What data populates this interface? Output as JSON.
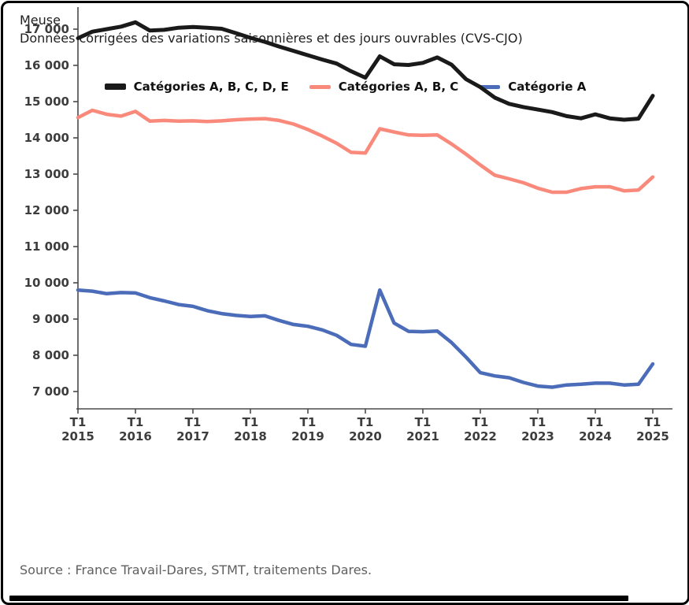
{
  "header": {
    "title": "Meuse",
    "subtitle": "Données corrigées des variations saisonnières et des jours ouvrables (CVS-CJO)"
  },
  "legend": [
    {
      "label": "Catégories A, B, C, D, E",
      "color": "#1a1a1a"
    },
    {
      "label": "Catégories A, B, C",
      "color": "#f9897b"
    },
    {
      "label": "Catégorie A",
      "color": "#4b6cb8"
    }
  ],
  "source": "Source : France Travail-Dares, STMT, traitements Dares.",
  "chart_data": {
    "type": "line",
    "title": "Meuse",
    "subtitle": "Données corrigées des variations saisonnières et des jours ouvrables (CVS-CJO)",
    "xlabel": "",
    "ylabel": "",
    "grid": false,
    "legend_position": "top",
    "ylim": [
      6520,
      17600
    ],
    "yticks": [
      7000,
      8000,
      9000,
      10000,
      11000,
      12000,
      13000,
      14000,
      15000,
      16000,
      17000
    ],
    "ytick_labels": [
      "7 000",
      "8 000",
      "9 000",
      "10 000",
      "11 000",
      "12 000",
      "13 000",
      "14 000",
      "15 000",
      "16 000",
      "17 000"
    ],
    "x": [
      "2015-T1",
      "2015-T2",
      "2015-T3",
      "2015-T4",
      "2016-T1",
      "2016-T2",
      "2016-T3",
      "2016-T4",
      "2017-T1",
      "2017-T2",
      "2017-T3",
      "2017-T4",
      "2018-T1",
      "2018-T2",
      "2018-T3",
      "2018-T4",
      "2019-T1",
      "2019-T2",
      "2019-T3",
      "2019-T4",
      "2020-T1",
      "2020-T2",
      "2020-T3",
      "2020-T4",
      "2021-T1",
      "2021-T2",
      "2021-T3",
      "2021-T4",
      "2022-T1",
      "2022-T2",
      "2022-T3",
      "2022-T4",
      "2023-T1",
      "2023-T2",
      "2023-T3",
      "2023-T4",
      "2024-T1",
      "2024-T2",
      "2024-T3",
      "2024-T4",
      "2025-T1"
    ],
    "xticks": {
      "indices": [
        0,
        4,
        8,
        12,
        16,
        20,
        24,
        28,
        32,
        36,
        40
      ],
      "quarter_label": "T1",
      "years": [
        "2015",
        "2016",
        "2017",
        "2018",
        "2019",
        "2020",
        "2021",
        "2022",
        "2023",
        "2024",
        "2025"
      ]
    },
    "series": [
      {
        "name": "Catégories A, B, C, D, E",
        "color": "#1a1a1a",
        "stroke_width": 5,
        "values": [
          16750,
          16930,
          17000,
          17070,
          17190,
          16960,
          16980,
          17040,
          17060,
          17040,
          17010,
          16890,
          16760,
          16650,
          16520,
          16400,
          16280,
          16160,
          16050,
          15840,
          15660,
          16250,
          16030,
          16010,
          16070,
          16220,
          16020,
          15620,
          15400,
          15110,
          14940,
          14850,
          14780,
          14710,
          14600,
          14540,
          14650,
          14540,
          14500,
          14530,
          15160
        ]
      },
      {
        "name": "Catégories A, B, C",
        "color": "#f9897b",
        "stroke_width": 4.5,
        "values": [
          14560,
          14760,
          14650,
          14600,
          14730,
          14460,
          14480,
          14460,
          14470,
          14450,
          14470,
          14500,
          14520,
          14530,
          14480,
          14380,
          14230,
          14050,
          13850,
          13600,
          13580,
          14250,
          14160,
          14080,
          14070,
          14080,
          13830,
          13550,
          13250,
          12970,
          12870,
          12760,
          12610,
          12500,
          12500,
          12600,
          12650,
          12650,
          12540,
          12560,
          12920
        ]
      },
      {
        "name": "Catégorie A",
        "color": "#4b6cb8",
        "stroke_width": 4.5,
        "values": [
          9800,
          9770,
          9700,
          9730,
          9720,
          9590,
          9500,
          9400,
          9350,
          9230,
          9150,
          9100,
          9070,
          9090,
          8960,
          8850,
          8800,
          8700,
          8550,
          8300,
          8250,
          9800,
          8890,
          8660,
          8650,
          8670,
          8350,
          7950,
          7520,
          7430,
          7380,
          7250,
          7150,
          7120,
          7180,
          7200,
          7230,
          7230,
          7180,
          7200,
          7760
        ]
      }
    ]
  }
}
